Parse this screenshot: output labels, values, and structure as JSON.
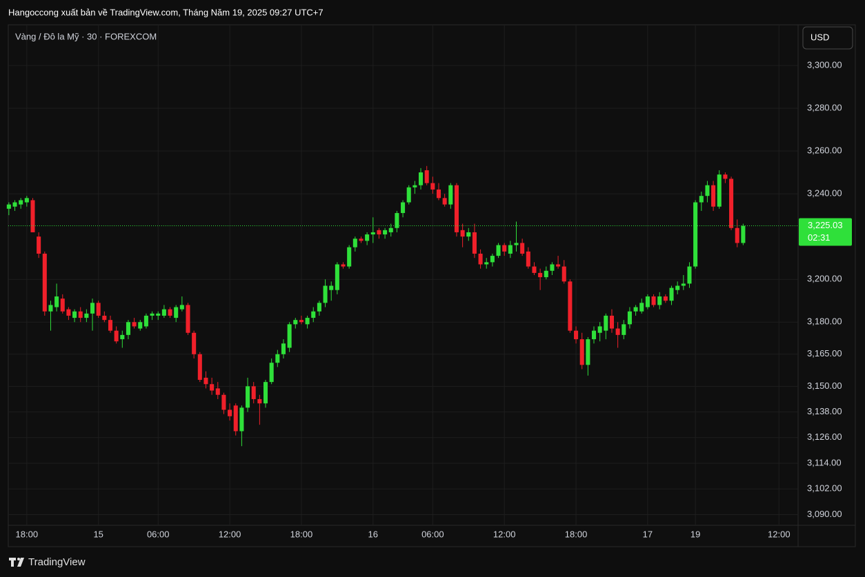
{
  "header": {
    "publisher": "Hangoccong xuất bản về TradingView.com, Tháng Năm 19, 2025 09:27 UTC+7"
  },
  "chart_data": {
    "type": "candlestick",
    "symbol": "Vàng / Đô la Mỹ · 30 · FOREXCOM",
    "currency": "USD",
    "up_color": "#2fe03a",
    "down_color": "#f0202a",
    "grid": true,
    "open": [
      3233,
      3234,
      3235,
      3236,
      3237,
      3220,
      3212,
      3185,
      3187,
      3191,
      3186,
      3182,
      3185,
      3182,
      3184,
      3189,
      3183,
      3181,
      3176,
      3172,
      3174,
      3180,
      3177,
      3178,
      3183,
      3183,
      3183,
      3186,
      3182,
      3186,
      3188,
      3175,
      3165,
      3154,
      3151,
      3149,
      3146,
      3139,
      3141,
      3129,
      3140,
      3150,
      3144,
      3142,
      3152,
      3161,
      3165,
      3168,
      3179,
      3181,
      3179,
      3182,
      3185,
      3189,
      3195,
      3195,
      3207,
      3206,
      3215,
      3219,
      3218,
      3221,
      3223,
      3221,
      3222,
      3224,
      3231,
      3236,
      3243,
      3244,
      3251,
      3245,
      3242,
      3238,
      3235,
      3244,
      3223,
      3220,
      3222,
      3212,
      3207,
      3208,
      3211,
      3216,
      3212,
      3216,
      3217,
      3213,
      3206,
      3203,
      3201,
      3204,
      3207,
      3206,
      3199,
      3176,
      3172,
      3160,
      3172,
      3175,
      3176,
      3183,
      3177,
      3174,
      3179,
      3185,
      3185,
      3187,
      3192,
      3188,
      3192,
      3190,
      3195,
      3197,
      3198,
      3206,
      3236,
      3239,
      3244,
      3234,
      3249,
      3247,
      3224,
      3217
    ],
    "high": [
      3236,
      3237,
      3238,
      3239,
      3238,
      3222,
      3213,
      3190,
      3198,
      3193,
      3187,
      3186,
      3187,
      3186,
      3191,
      3190,
      3185,
      3183,
      3178,
      3176,
      3181,
      3182,
      3181,
      3184,
      3185,
      3185,
      3188,
      3187,
      3188,
      3192,
      3189,
      3176,
      3166,
      3157,
      3154,
      3152,
      3147,
      3142,
      3142,
      3141,
      3154,
      3152,
      3146,
      3153,
      3163,
      3167,
      3172,
      3180,
      3182,
      3183,
      3183,
      3187,
      3190,
      3200,
      3199,
      3208,
      3208,
      3216,
      3220,
      3220,
      3222,
      3229,
      3224,
      3224,
      3226,
      3232,
      3237,
      3244,
      3246,
      3252,
      3253,
      3248,
      3245,
      3240,
      3245,
      3245,
      3226,
      3224,
      3226,
      3214,
      3210,
      3212,
      3217,
      3217,
      3218,
      3227,
      3219,
      3215,
      3208,
      3205,
      3206,
      3208,
      3211,
      3209,
      3200,
      3178,
      3175,
      3173,
      3178,
      3180,
      3184,
      3186,
      3180,
      3181,
      3187,
      3188,
      3191,
      3193,
      3193,
      3194,
      3193,
      3197,
      3199,
      3202,
      3208,
      3237,
      3241,
      3246,
      3246,
      3251,
      3250,
      3248,
      3228,
      3226
    ],
    "low": [
      3230,
      3232,
      3233,
      3234,
      3222,
      3210,
      3183,
      3176,
      3185,
      3184,
      3181,
      3180,
      3180,
      3180,
      3176,
      3182,
      3180,
      3175,
      3170,
      3168,
      3172,
      3177,
      3176,
      3177,
      3181,
      3181,
      3182,
      3182,
      3180,
      3185,
      3174,
      3163,
      3152,
      3149,
      3146,
      3144,
      3137,
      3134,
      3127,
      3122,
      3138,
      3142,
      3132,
      3140,
      3151,
      3159,
      3163,
      3166,
      3177,
      3179,
      3177,
      3180,
      3183,
      3187,
      3190,
      3193,
      3205,
      3205,
      3213,
      3217,
      3216,
      3217,
      3219,
      3219,
      3220,
      3222,
      3229,
      3235,
      3240,
      3242,
      3244,
      3240,
      3237,
      3234,
      3233,
      3220,
      3215,
      3218,
      3210,
      3205,
      3205,
      3206,
      3210,
      3211,
      3210,
      3213,
      3211,
      3205,
      3202,
      3195,
      3200,
      3202,
      3205,
      3198,
      3175,
      3170,
      3158,
      3155,
      3170,
      3171,
      3172,
      3175,
      3168,
      3172,
      3177,
      3183,
      3184,
      3186,
      3187,
      3186,
      3189,
      3188,
      3193,
      3195,
      3196,
      3205,
      3232,
      3236,
      3232,
      3233,
      3245,
      3223,
      3215,
      3216
    ],
    "close": [
      3235,
      3236,
      3237,
      3238,
      3222,
      3212,
      3185,
      3188,
      3192,
      3185,
      3183,
      3185,
      3182,
      3184,
      3189,
      3183,
      3181,
      3176,
      3171,
      3174,
      3180,
      3178,
      3180,
      3183,
      3184,
      3184,
      3186,
      3183,
      3187,
      3188,
      3175,
      3165,
      3153,
      3151,
      3148,
      3146,
      3139,
      3136,
      3129,
      3140,
      3150,
      3144,
      3142,
      3152,
      3161,
      3165,
      3170,
      3179,
      3181,
      3180,
      3182,
      3185,
      3189,
      3197,
      3197,
      3207,
      3206,
      3215,
      3219,
      3218,
      3221,
      3222,
      3221,
      3223,
      3224,
      3231,
      3236,
      3243,
      3244,
      3250,
      3245,
      3242,
      3238,
      3235,
      3244,
      3222,
      3220,
      3222,
      3212,
      3207,
      3208,
      3211,
      3216,
      3213,
      3216,
      3217,
      3212,
      3206,
      3203,
      3201,
      3204,
      3207,
      3206,
      3199,
      3176,
      3172,
      3160,
      3172,
      3176,
      3178,
      3183,
      3177,
      3174,
      3179,
      3185,
      3187,
      3189,
      3192,
      3188,
      3192,
      3190,
      3196,
      3197,
      3198,
      3206,
      3236,
      3239,
      3244,
      3234,
      3249,
      3247,
      3224,
      3217,
      3225.03
    ],
    "last_price": {
      "value": 3225.03,
      "label": "3,225.03"
    },
    "countdown": "02:31",
    "ylim": [
      3085,
      3319
    ],
    "yticks": [
      {
        "value": 3300,
        "label": "3,300.00"
      },
      {
        "value": 3280,
        "label": "3,280.00"
      },
      {
        "value": 3260,
        "label": "3,260.00"
      },
      {
        "value": 3240,
        "label": "3,240.00"
      },
      {
        "value": 3200,
        "label": "3,200.00"
      },
      {
        "value": 3180,
        "label": "3,180.00"
      },
      {
        "value": 3165,
        "label": "3,165.00"
      },
      {
        "value": 3150,
        "label": "3,150.00"
      },
      {
        "value": 3138,
        "label": "3,138.00"
      },
      {
        "value": 3126,
        "label": "3,126.00"
      },
      {
        "value": 3114,
        "label": "3,114.00"
      },
      {
        "value": 3102,
        "label": "3,102.00"
      },
      {
        "value": 3090,
        "label": "3,090.00"
      }
    ],
    "xlim": [
      -0.1,
      132.2
    ],
    "xticks": [
      {
        "value": 3,
        "label": "18:00"
      },
      {
        "value": 15,
        "label": "15"
      },
      {
        "value": 25,
        "label": "06:00"
      },
      {
        "value": 37,
        "label": "12:00"
      },
      {
        "value": 49,
        "label": "18:00"
      },
      {
        "value": 61,
        "label": "16"
      },
      {
        "value": 71,
        "label": "06:00"
      },
      {
        "value": 83,
        "label": "12:00"
      },
      {
        "value": 95,
        "label": "18:00"
      },
      {
        "value": 107,
        "label": "17"
      },
      {
        "value": 115,
        "label": "19"
      },
      {
        "value": 129,
        "label": "12:00"
      }
    ]
  },
  "footer": {
    "brand": "TradingView"
  }
}
